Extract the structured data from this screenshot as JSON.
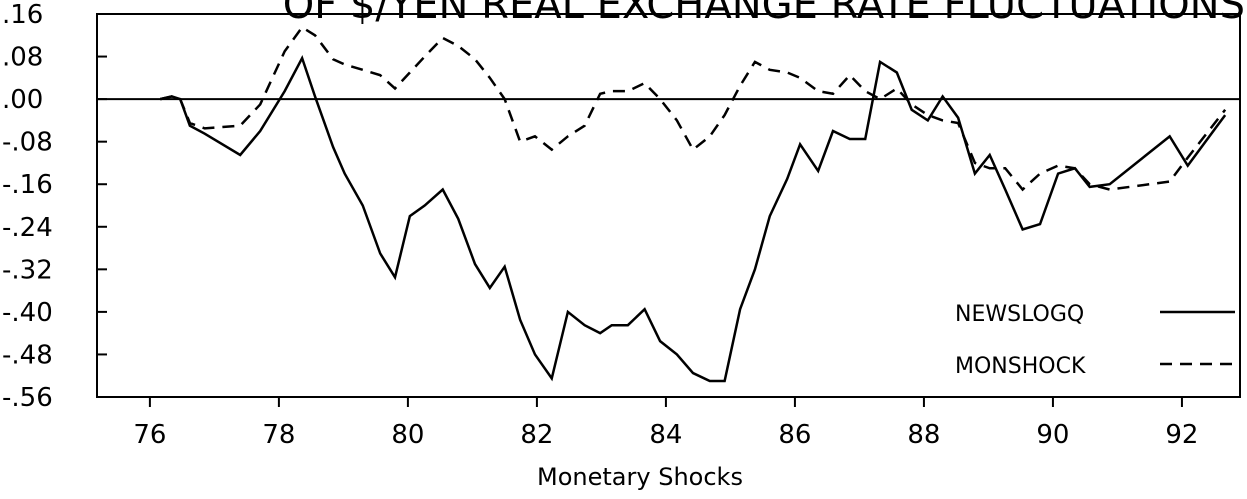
{
  "chart_data": {
    "type": "line",
    "title": "OF $/YEN REAL EXCHANGE RATE FLUCTUATIONS",
    "x_label": "Monetary Shocks",
    "x": [
      76.16,
      76.34,
      76.47,
      76.62,
      76.85,
      77.4,
      77.71,
      78.09,
      78.36,
      78.56,
      78.84,
      79.02,
      79.3,
      79.57,
      79.8,
      80.03,
      80.26,
      80.54,
      80.78,
      81.04,
      81.27,
      81.5,
      81.74,
      81.97,
      82.23,
      82.48,
      82.74,
      82.98,
      83.16,
      83.41,
      83.67,
      83.91,
      84.17,
      84.42,
      84.68,
      84.91,
      85.15,
      85.38,
      85.61,
      85.88,
      86.08,
      86.36,
      86.59,
      86.85,
      87.09,
      87.32,
      87.58,
      87.81,
      88.06,
      88.29,
      88.53,
      88.79,
      89.02,
      89.26,
      89.53,
      89.8,
      90.08,
      90.34,
      90.57,
      90.88,
      91.81,
      92.09,
      92.67
    ],
    "series": [
      {
        "name": "NEWSLOGQ",
        "color": "#000000",
        "dash": "solid",
        "values": [
          0.0,
          0.005,
          0.0,
          -0.05,
          -0.065,
          -0.105,
          -0.06,
          0.015,
          0.077,
          0.005,
          -0.09,
          -0.14,
          -0.2,
          -0.29,
          -0.335,
          -0.22,
          -0.2,
          -0.17,
          -0.225,
          -0.31,
          -0.355,
          -0.315,
          -0.415,
          -0.48,
          -0.525,
          -0.4,
          -0.425,
          -0.44,
          -0.425,
          -0.425,
          -0.395,
          -0.455,
          -0.48,
          -0.515,
          -0.53,
          -0.53,
          -0.395,
          -0.32,
          -0.22,
          -0.15,
          -0.085,
          -0.135,
          -0.06,
          -0.075,
          -0.075,
          0.07,
          0.05,
          -0.02,
          -0.04,
          0.005,
          -0.035,
          -0.14,
          -0.105,
          -0.17,
          -0.245,
          -0.235,
          -0.14,
          -0.13,
          -0.165,
          -0.16,
          -0.07,
          -0.125,
          -0.03
        ]
      },
      {
        "name": "MONSHOCK",
        "color": "#000000",
        "dash": "dashed",
        "values": [
          0.0,
          0.005,
          0.0,
          -0.045,
          -0.055,
          -0.05,
          -0.01,
          0.09,
          0.135,
          0.12,
          0.075,
          0.065,
          0.055,
          0.045,
          0.02,
          0.05,
          0.08,
          0.115,
          0.1,
          0.075,
          0.04,
          0.0,
          -0.08,
          -0.07,
          -0.095,
          -0.07,
          -0.05,
          0.01,
          0.015,
          0.015,
          0.03,
          0.0,
          -0.04,
          -0.095,
          -0.07,
          -0.03,
          0.025,
          0.07,
          0.055,
          0.05,
          0.04,
          0.015,
          0.01,
          0.045,
          0.015,
          0.0,
          0.02,
          -0.01,
          -0.03,
          -0.04,
          -0.045,
          -0.12,
          -0.13,
          -0.13,
          -0.17,
          -0.14,
          -0.125,
          -0.13,
          -0.16,
          -0.17,
          -0.155,
          -0.11,
          -0.02
        ]
      }
    ],
    "xlim": [
      75.18,
      92.9
    ],
    "xticks": [
      76,
      78,
      80,
      82,
      84,
      86,
      88,
      90,
      92
    ],
    "ylim": [
      -0.56,
      0.16
    ],
    "yticks": [
      {
        "value": 0.16,
        "label": ".16"
      },
      {
        "value": 0.08,
        "label": ".08"
      },
      {
        "value": 0.0,
        "label": ".00"
      },
      {
        "value": -0.08,
        "label": "-.08"
      },
      {
        "value": -0.16,
        "label": "-.16"
      },
      {
        "value": -0.24,
        "label": "-.24"
      },
      {
        "value": -0.32,
        "label": "-.32"
      },
      {
        "value": -0.4,
        "label": "-.40"
      },
      {
        "value": -0.48,
        "label": "-.48"
      },
      {
        "value": -0.56,
        "label": "-.56"
      }
    ],
    "zero_line": true,
    "legend": "lower right"
  }
}
